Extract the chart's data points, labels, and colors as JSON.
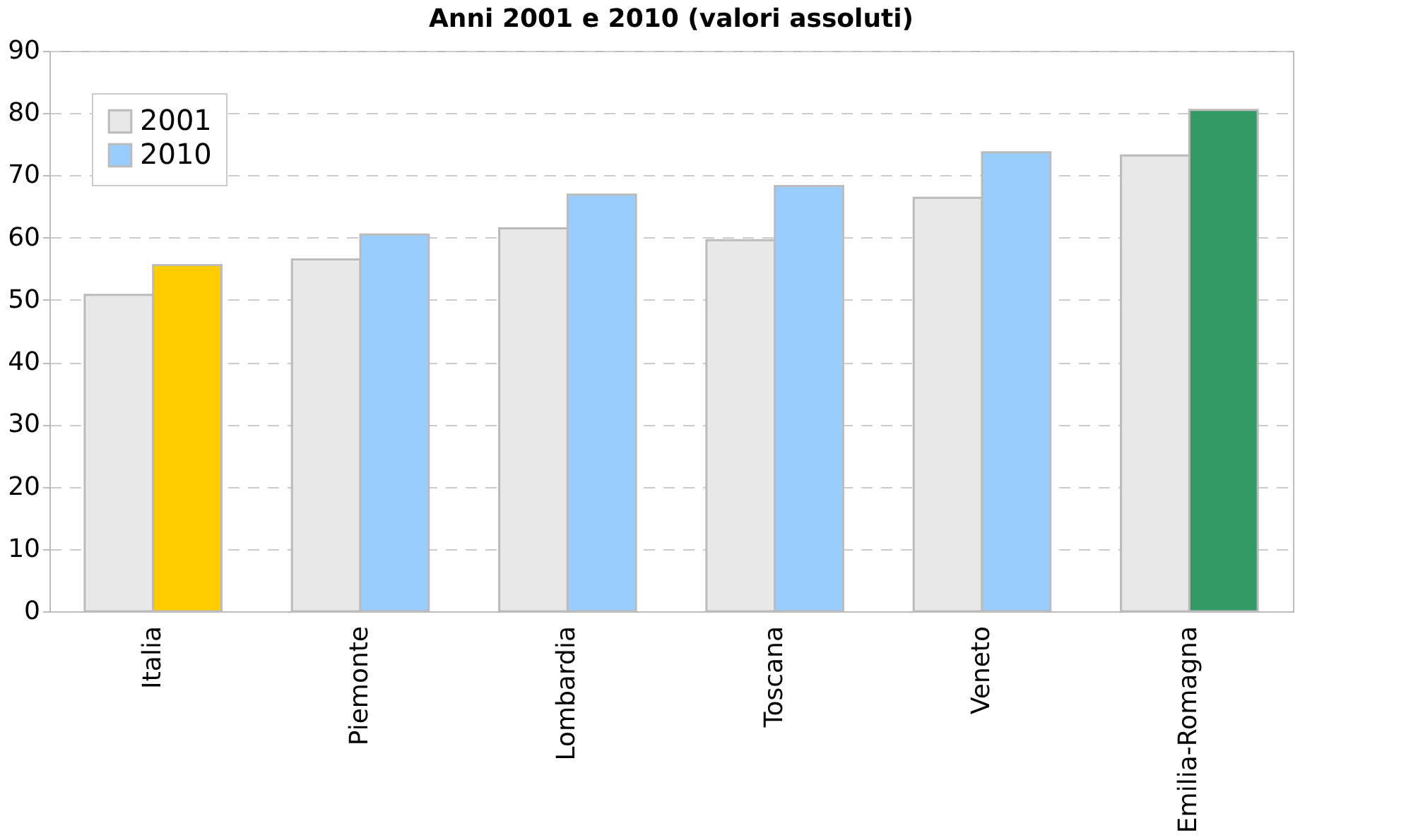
{
  "chart_data": {
    "type": "bar",
    "title": "Anni 2001 e 2010 (valori assoluti)",
    "categories": [
      "Italia",
      "Piemonte",
      "Lombardia",
      "Toscana",
      "Veneto",
      "Emilia-Romagna"
    ],
    "series": [
      {
        "name": "2001",
        "color": "#e8e8e8",
        "values": [
          50.8,
          56.5,
          61.5,
          59.6,
          66.4,
          73.2
        ]
      },
      {
        "name": "2010",
        "color": "#99ccff",
        "colors": [
          "#ffcc00",
          "#99ccff",
          "#99ccff",
          "#99ccff",
          "#99ccff",
          "#339966"
        ],
        "values": [
          55.6,
          60.5,
          66.9,
          68.3,
          73.7,
          80.5
        ]
      }
    ],
    "ylim": [
      0,
      90
    ],
    "yticks": [
      0,
      10,
      20,
      30,
      40,
      50,
      60,
      70,
      80,
      90
    ],
    "grid": "y",
    "legend": "top left"
  }
}
